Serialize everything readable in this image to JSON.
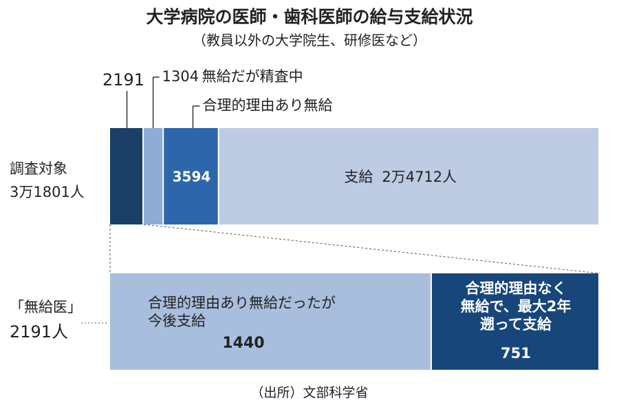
{
  "chart_data": {
    "type": "stacked-bar",
    "title": "大学病院の医師・歯科医師の給与支給状況",
    "subtitle": "（教員以外の大学院生、研修医など）",
    "source": "（出所）文部科学省",
    "bars": [
      {
        "label": "調査対象",
        "total": 31801,
        "total_label": "3万1801人",
        "segments": [
          {
            "value": 2191,
            "color": "#1b3f66"
          },
          {
            "name": [
              "無給だが精査中"
            ],
            "value": 1304,
            "color": "#8eacd5"
          },
          {
            "name": [
              "合理的理由あり無給"
            ],
            "value": 3594,
            "color": "#2e66ab"
          },
          {
            "name": [
              "支給"
            ],
            "value": 24712,
            "value_label": "2万4712人",
            "color": "#bdcbe3"
          }
        ]
      },
      {
        "label": "「無給医」",
        "total": 2191,
        "total_label": "2191人",
        "segments": [
          {
            "name": [
              "合理的理由あり無給だったが",
              "今後支給"
            ],
            "value": 1440,
            "color": "#a9bedd"
          },
          {
            "name": [
              "合理的理由なく",
              "無給で、最大2年",
              "遡って支給"
            ],
            "value": 751,
            "color": "#17467a"
          }
        ]
      }
    ]
  }
}
